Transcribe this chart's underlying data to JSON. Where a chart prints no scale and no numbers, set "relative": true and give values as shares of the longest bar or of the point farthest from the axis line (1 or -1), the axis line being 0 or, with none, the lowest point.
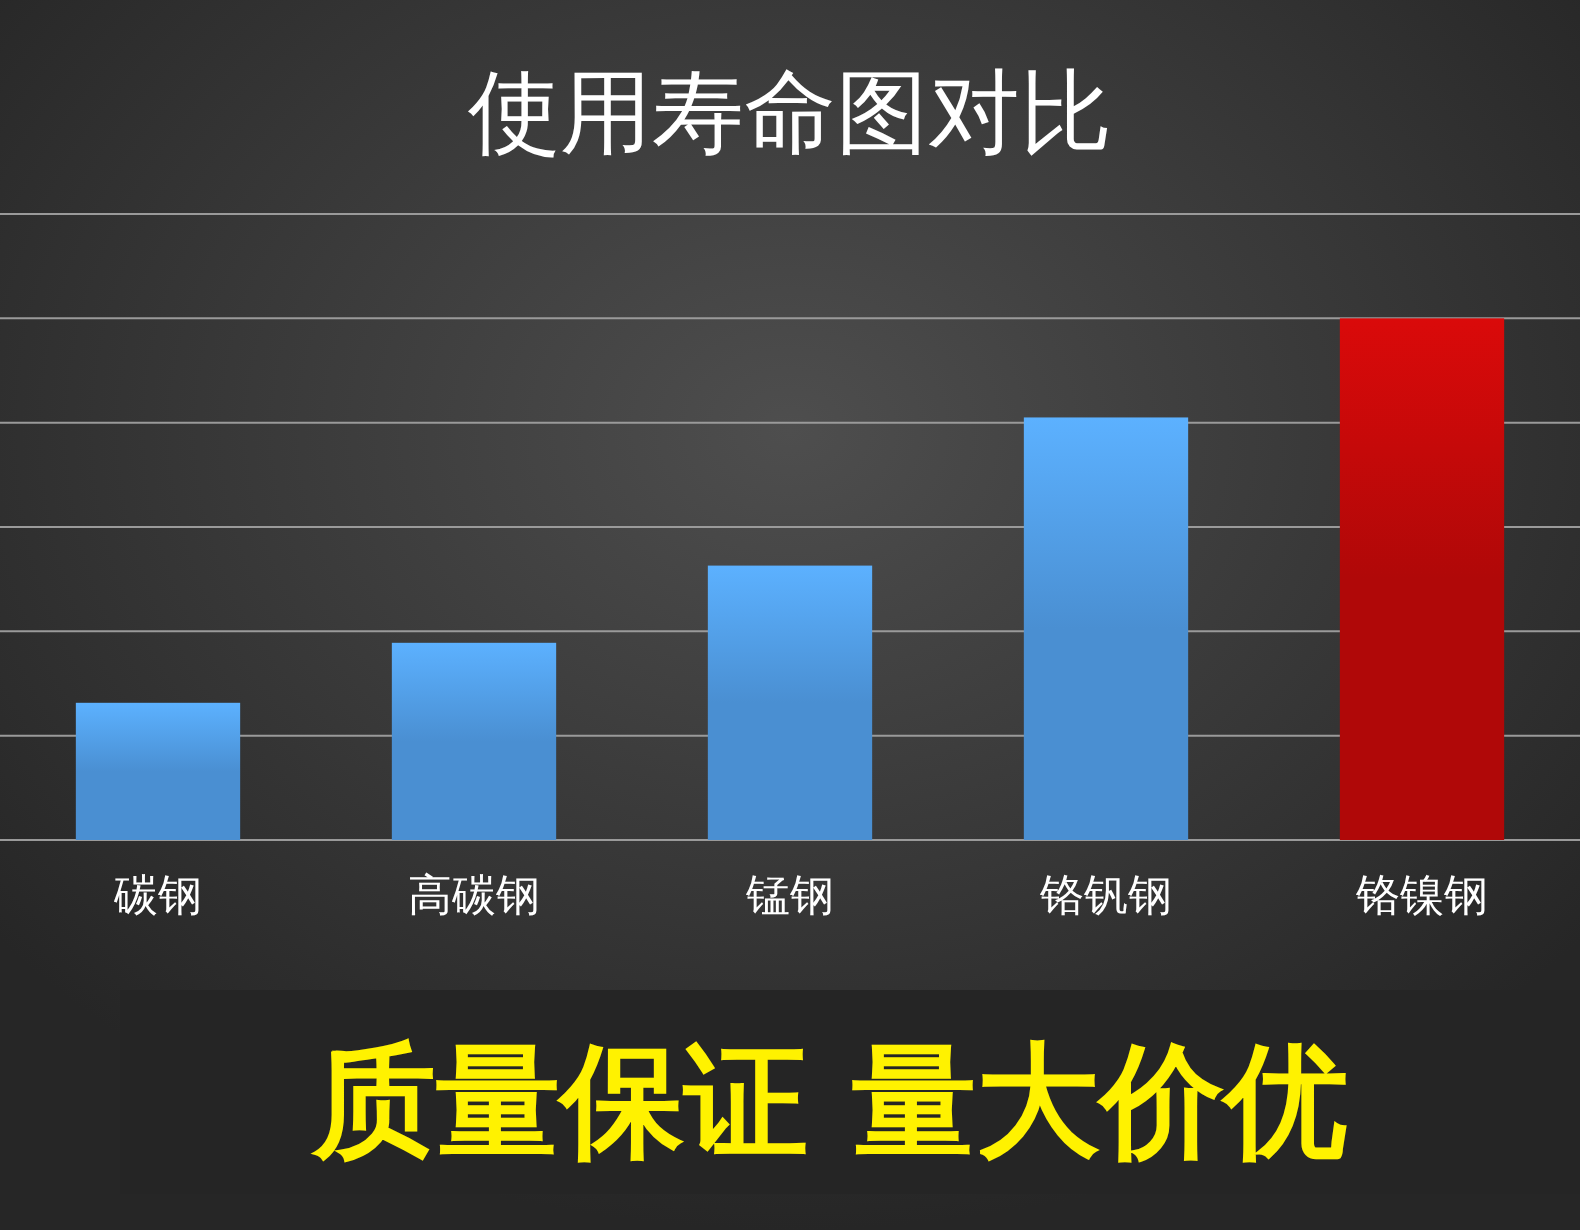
{
  "chart_data": {
    "type": "bar",
    "title": "使用寿命图对比",
    "relative": true,
    "grid": true,
    "categories": [
      "碳钢",
      "高碳钢",
      "锰钢",
      "铬钒钢",
      "铬镍钢"
    ],
    "values": [
      0.263,
      0.378,
      0.526,
      0.81,
      1
    ],
    "colors": [
      "#4a8fd2",
      "#4a8fd2",
      "#4a8fd2",
      "#4a8fd2",
      "#b00808"
    ],
    "annotations": [
      "质量保证 量大价优"
    ]
  }
}
